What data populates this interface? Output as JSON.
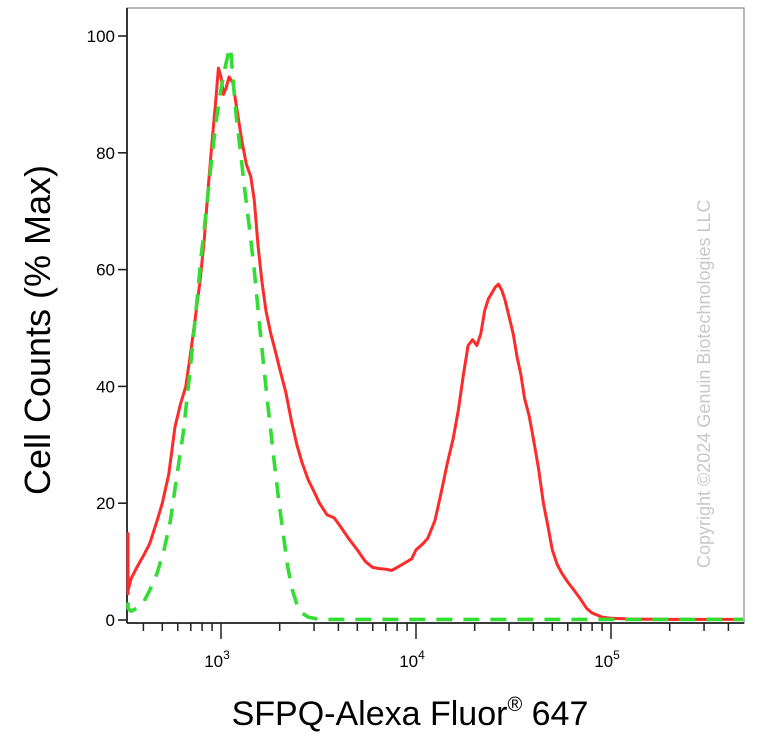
{
  "chart_data": {
    "type": "line",
    "ylabel": "Cell Counts (% Max)",
    "xlabel": {
      "prefix": "SFPQ-Alexa Fluor",
      "superscript": "®",
      "suffix": " 647"
    },
    "x_scale": "log",
    "x_range": [
      260,
      500000
    ],
    "ylim": [
      0,
      105
    ],
    "y_ticks": [
      0,
      20,
      40,
      60,
      80,
      100
    ],
    "y_tick_labels": [
      "0",
      "20",
      "40",
      "60",
      "80",
      "100"
    ],
    "x_ticks": [
      {
        "value": 1000,
        "base": "10",
        "exp": "3"
      },
      {
        "value": 10000,
        "base": "10",
        "exp": "4"
      },
      {
        "value": 100000,
        "base": "10",
        "exp": "5"
      }
    ],
    "grid": false,
    "watermark": "Copyright ©2024 Genuin Biotechnologies LLC",
    "series": [
      {
        "color": "#ff2a2a",
        "dash": "solid",
        "points": [
          [
            260,
            15
          ],
          [
            275,
            10
          ],
          [
            290,
            6
          ],
          [
            305,
            4.5
          ],
          [
            320,
            5
          ],
          [
            345,
            7
          ],
          [
            370,
            9
          ],
          [
            400,
            11
          ],
          [
            430,
            13
          ],
          [
            470,
            17
          ],
          [
            500,
            20
          ],
          [
            540,
            25
          ],
          [
            580,
            33
          ],
          [
            620,
            37
          ],
          [
            660,
            40
          ],
          [
            700,
            46
          ],
          [
            740,
            52
          ],
          [
            780,
            58
          ],
          [
            820,
            65
          ],
          [
            860,
            74
          ],
          [
            900,
            82
          ],
          [
            940,
            89
          ],
          [
            970,
            94.5
          ],
          [
            1000,
            93
          ],
          [
            1030,
            90
          ],
          [
            1060,
            91
          ],
          [
            1100,
            93
          ],
          [
            1150,
            92
          ],
          [
            1200,
            88
          ],
          [
            1280,
            82
          ],
          [
            1350,
            78
          ],
          [
            1420,
            76
          ],
          [
            1480,
            72
          ],
          [
            1550,
            64
          ],
          [
            1620,
            58
          ],
          [
            1700,
            53
          ],
          [
            1800,
            49
          ],
          [
            1900,
            46
          ],
          [
            2000,
            43
          ],
          [
            2150,
            39
          ],
          [
            2300,
            34
          ],
          [
            2450,
            30
          ],
          [
            2600,
            27
          ],
          [
            2800,
            24
          ],
          [
            3000,
            22
          ],
          [
            3200,
            20
          ],
          [
            3500,
            18
          ],
          [
            3800,
            17.5
          ],
          [
            4100,
            16
          ],
          [
            4500,
            14
          ],
          [
            5000,
            12
          ],
          [
            5500,
            10
          ],
          [
            6000,
            9
          ],
          [
            6500,
            8.8
          ],
          [
            7000,
            8.7
          ],
          [
            7500,
            8.5
          ],
          [
            8000,
            9
          ],
          [
            8500,
            9.5
          ],
          [
            9000,
            10
          ],
          [
            9500,
            10.5
          ],
          [
            10000,
            12
          ],
          [
            10800,
            13
          ],
          [
            11500,
            14
          ],
          [
            12500,
            17
          ],
          [
            13500,
            22
          ],
          [
            14500,
            27
          ],
          [
            15500,
            31
          ],
          [
            16500,
            36
          ],
          [
            17500,
            42
          ],
          [
            18500,
            47
          ],
          [
            19500,
            48
          ],
          [
            20500,
            47
          ],
          [
            21500,
            49
          ],
          [
            22500,
            53
          ],
          [
            23500,
            55
          ],
          [
            24500,
            56
          ],
          [
            25500,
            57
          ],
          [
            26500,
            57.5
          ],
          [
            27500,
            56.5
          ],
          [
            28500,
            55
          ],
          [
            30000,
            52
          ],
          [
            31500,
            49
          ],
          [
            33000,
            45
          ],
          [
            34500,
            42
          ],
          [
            36000,
            38
          ],
          [
            38000,
            35
          ],
          [
            40000,
            31
          ],
          [
            42500,
            26
          ],
          [
            45000,
            20
          ],
          [
            47500,
            16
          ],
          [
            50000,
            12
          ],
          [
            53000,
            9.5
          ],
          [
            56000,
            8
          ],
          [
            60000,
            6.5
          ],
          [
            65000,
            5
          ],
          [
            70000,
            3.5
          ],
          [
            75000,
            2
          ],
          [
            80000,
            1.2
          ],
          [
            90000,
            0.5
          ],
          [
            100000,
            0.3
          ],
          [
            130000,
            0.15
          ],
          [
            200000,
            0.1
          ],
          [
            500000,
            0.1
          ]
        ]
      },
      {
        "color": "#33dd33",
        "dash": "dashed",
        "points": [
          [
            300,
            3
          ],
          [
            320,
            2
          ],
          [
            345,
            1.5
          ],
          [
            370,
            2
          ],
          [
            400,
            3
          ],
          [
            430,
            5
          ],
          [
            470,
            8
          ],
          [
            510,
            12
          ],
          [
            550,
            17
          ],
          [
            590,
            24
          ],
          [
            640,
            32
          ],
          [
            690,
            42
          ],
          [
            740,
            52
          ],
          [
            790,
            62
          ],
          [
            840,
            70
          ],
          [
            890,
            78
          ],
          [
            940,
            85
          ],
          [
            990,
            90
          ],
          [
            1040,
            94
          ],
          [
            1090,
            97
          ],
          [
            1120,
            98
          ],
          [
            1150,
            93
          ],
          [
            1200,
            86
          ],
          [
            1260,
            80
          ],
          [
            1320,
            74
          ],
          [
            1400,
            67
          ],
          [
            1480,
            60
          ],
          [
            1560,
            52
          ],
          [
            1650,
            44
          ],
          [
            1750,
            36
          ],
          [
            1860,
            28
          ],
          [
            1970,
            21
          ],
          [
            2080,
            15
          ],
          [
            2200,
            9
          ],
          [
            2330,
            5
          ],
          [
            2460,
            2.5
          ],
          [
            2600,
            1.2
          ],
          [
            2800,
            0.5
          ],
          [
            3200,
            0.1
          ],
          [
            5000,
            0.1
          ],
          [
            10000,
            0.1
          ],
          [
            50000,
            0.1
          ],
          [
            500000,
            0.1
          ]
        ]
      }
    ]
  }
}
